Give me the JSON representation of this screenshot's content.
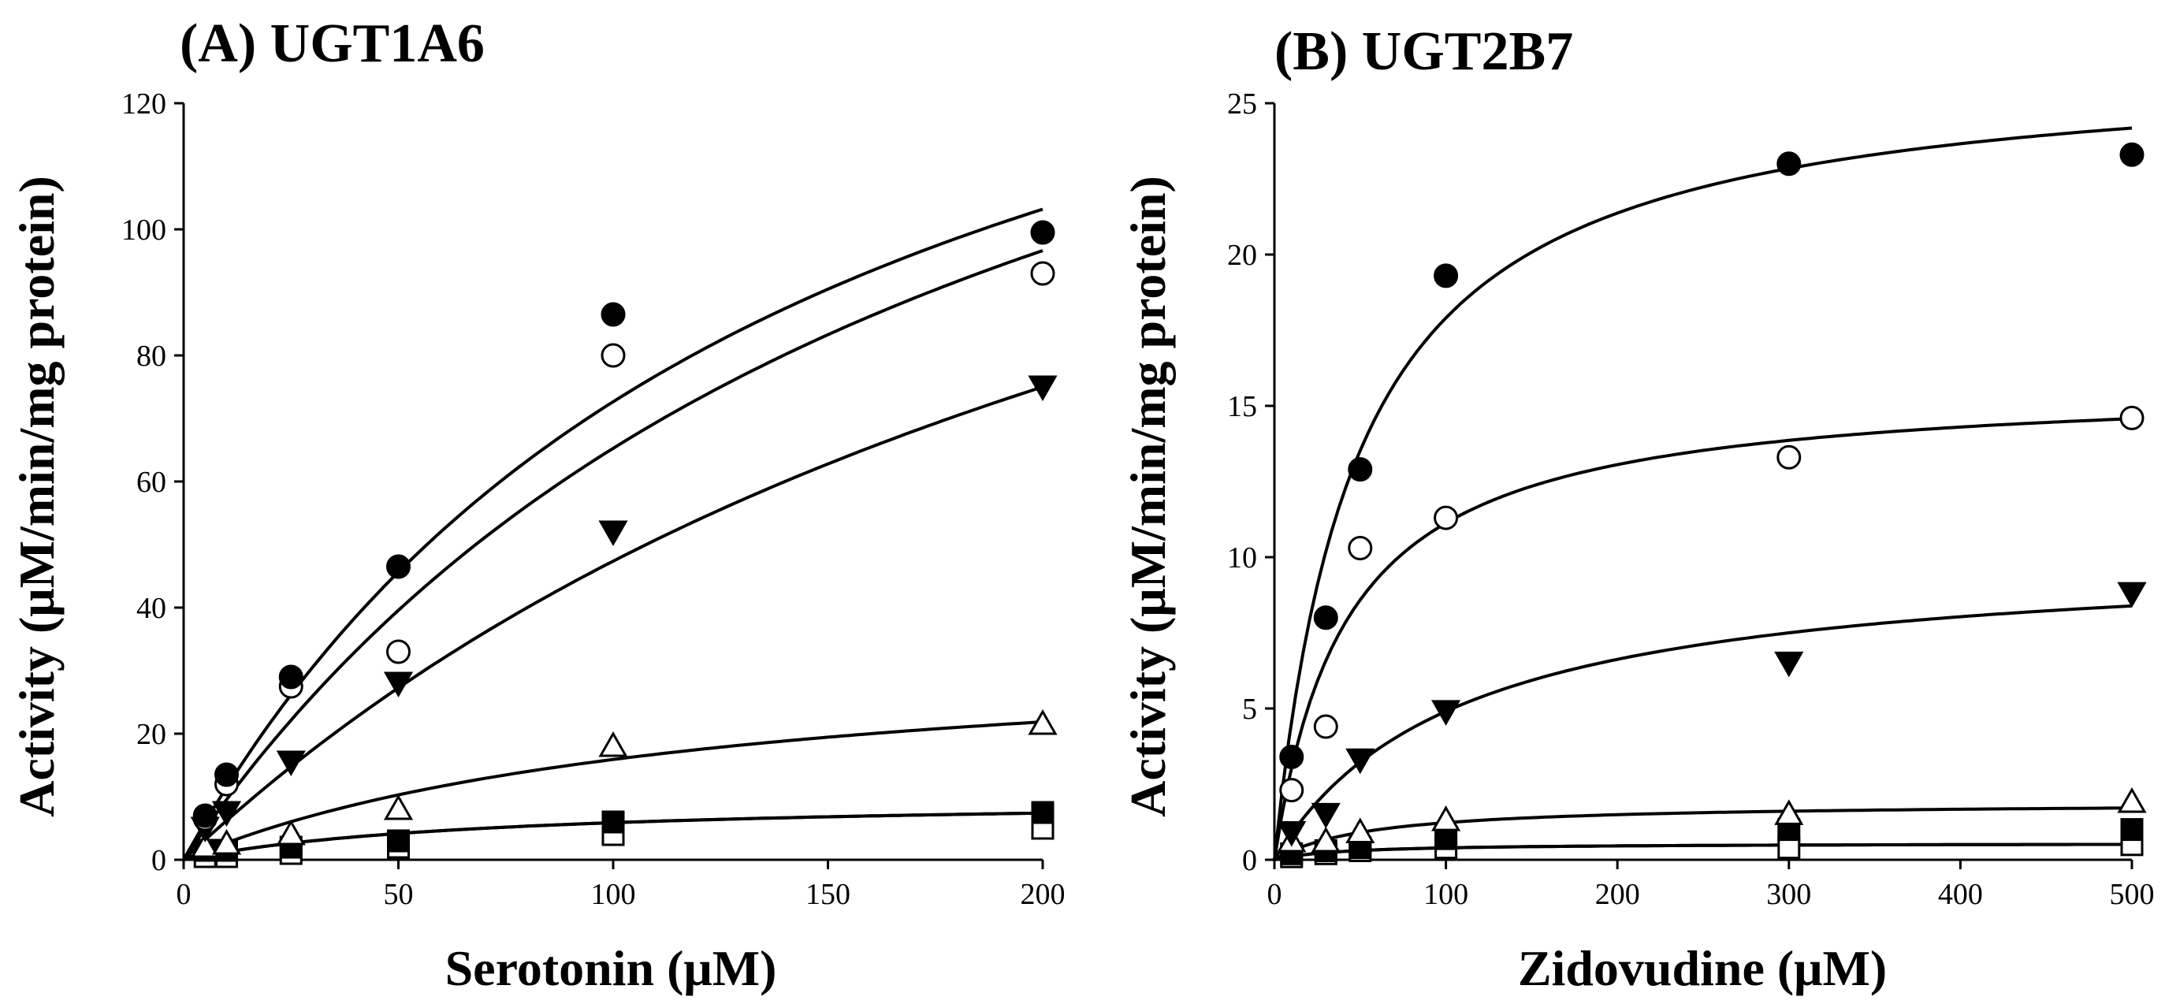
{
  "chart_data": [
    {
      "type": "scatter",
      "title": "(A) UGT1A6",
      "xlabel": "Serotonin (μM)",
      "ylabel": "Activity (μM/min/mg protein)",
      "xlim": [
        0,
        200
      ],
      "ylim": [
        0,
        120
      ],
      "xticks": [
        0,
        50,
        100,
        150,
        200
      ],
      "yticks": [
        0,
        20,
        40,
        60,
        80,
        100,
        120
      ],
      "x": [
        5,
        10,
        25,
        50,
        100,
        200
      ],
      "series": [
        {
          "marker": "filled-circle",
          "values": [
            7,
            13.5,
            29,
            46.5,
            86.5,
            99.5
          ],
          "fit": {
            "vmax": 178,
            "km": 145
          }
        },
        {
          "marker": "open-circle",
          "values": [
            6.5,
            12,
            27.5,
            33,
            80,
            93
          ],
          "fit": {
            "vmax": 186,
            "km": 185
          }
        },
        {
          "marker": "filled-triangle-down",
          "values": [
            5,
            7.5,
            15.5,
            28,
            52,
            75
          ],
          "fit": {
            "vmax": 180,
            "km": 280
          }
        },
        {
          "marker": "open-triangle-up",
          "values": [
            2,
            2.5,
            4,
            8,
            18,
            21.5
          ],
          "fit": {
            "vmax": 35,
            "km": 120
          }
        },
        {
          "marker": "filled-square",
          "values": [
            1.5,
            1.5,
            2,
            3,
            6,
            7.5
          ],
          "fit": {
            "vmax": 10,
            "km": 70
          }
        },
        {
          "marker": "open-square",
          "values": [
            0.5,
            0.5,
            1,
            2,
            4,
            5
          ],
          "fit": {
            "vmax": 10,
            "km": 70
          }
        }
      ]
    },
    {
      "type": "scatter",
      "title": "(B) UGT2B7",
      "xlabel": "Zidovudine (μM)",
      "ylabel": "Activity (μM/min/mg protein)",
      "xlim": [
        0,
        500
      ],
      "ylim": [
        0,
        25
      ],
      "xticks": [
        0,
        100,
        200,
        300,
        400,
        500
      ],
      "yticks": [
        0,
        5,
        10,
        15,
        20,
        25
      ],
      "x": [
        10,
        30,
        50,
        100,
        300,
        500
      ],
      "series": [
        {
          "marker": "filled-circle",
          "values": [
            3.4,
            8,
            12.9,
            19.3,
            23,
            23.3
          ],
          "fit": {
            "vmax": 26.5,
            "km": 48
          }
        },
        {
          "marker": "open-circle",
          "values": [
            2.3,
            4.4,
            10.3,
            11.3,
            13.3,
            14.6
          ],
          "fit": {
            "vmax": 15.8,
            "km": 42
          }
        },
        {
          "marker": "filled-triangle-down",
          "values": [
            0.9,
            1.5,
            3.3,
            4.9,
            6.5,
            8.8
          ],
          "fit": {
            "vmax": 10.2,
            "km": 108
          }
        },
        {
          "marker": "open-triangle-up",
          "values": [
            0.6,
            0.6,
            0.9,
            1.3,
            1.5,
            1.9
          ],
          "fit": {
            "vmax": 1.9,
            "km": 55
          }
        },
        {
          "marker": "filled-square",
          "values": [
            0.2,
            0.3,
            0.4,
            0.7,
            1.0,
            1.0
          ],
          "fit": {
            "vmax": 0.55,
            "km": 40
          }
        },
        {
          "marker": "open-square",
          "values": [
            0.1,
            0.2,
            0.3,
            0.4,
            0.4,
            0.5
          ],
          "fit": {
            "vmax": 0.55,
            "km": 40
          }
        }
      ]
    }
  ]
}
